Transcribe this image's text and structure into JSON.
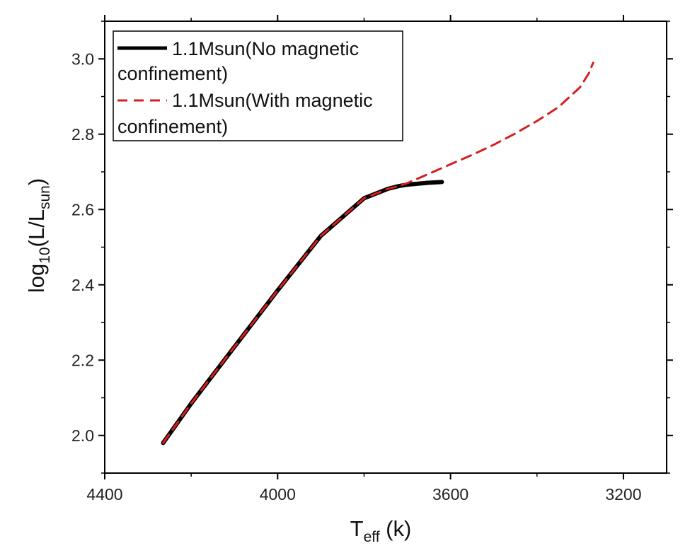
{
  "chart_data": {
    "type": "line",
    "title": "",
    "xlabel": {
      "main": "T",
      "sub": "eff",
      "suffix": " (k)"
    },
    "ylabel": {
      "main": "log",
      "sub1": "10",
      "mid": "(L/L",
      "sub2": "sun",
      "suffix": ")"
    },
    "xlim": [
      4400,
      3100
    ],
    "ylim": [
      1.9,
      3.1
    ],
    "x_reversed": true,
    "xticks": [
      4400,
      4000,
      3600,
      3200
    ],
    "xtick_labels": [
      "4400",
      "4000",
      "3600",
      "3200"
    ],
    "yticks": [
      2.0,
      2.2,
      2.4,
      2.6,
      2.8,
      3.0
    ],
    "ytick_labels": [
      "2.0",
      "2.2",
      "2.4",
      "2.6",
      "2.8",
      "3.0"
    ],
    "grid": false,
    "legend_position": "top-left",
    "series": [
      {
        "name": "1.1Msun(No magnetic confinement)",
        "label_line1": "1.1Msun(No magnetic",
        "label_line2": "confinement)",
        "color": "#000000",
        "style": "solid",
        "x": [
          4265,
          4200,
          4100,
          4000,
          3900,
          3800,
          3760,
          3745,
          3720,
          3700,
          3680,
          3650,
          3620
        ],
        "y": [
          1.98,
          2.085,
          2.235,
          2.385,
          2.53,
          2.63,
          2.648,
          2.655,
          2.662,
          2.666,
          2.668,
          2.671,
          2.673
        ]
      },
      {
        "name": "1.1Msun(With magnetic confinement)",
        "label_line1": "1.1Msun(With magnetic",
        "label_line2": "confinement)",
        "color": "#d42020",
        "style": "dashed",
        "x": [
          4265,
          4200,
          4100,
          4000,
          3900,
          3800,
          3760,
          3745,
          3720,
          3700,
          3650,
          3600,
          3550,
          3500,
          3450,
          3400,
          3350,
          3300,
          3280,
          3270
        ],
        "y": [
          1.98,
          2.085,
          2.235,
          2.385,
          2.53,
          2.63,
          2.648,
          2.655,
          2.662,
          2.67,
          2.695,
          2.72,
          2.745,
          2.772,
          2.802,
          2.835,
          2.872,
          2.925,
          2.962,
          2.99
        ]
      }
    ]
  }
}
